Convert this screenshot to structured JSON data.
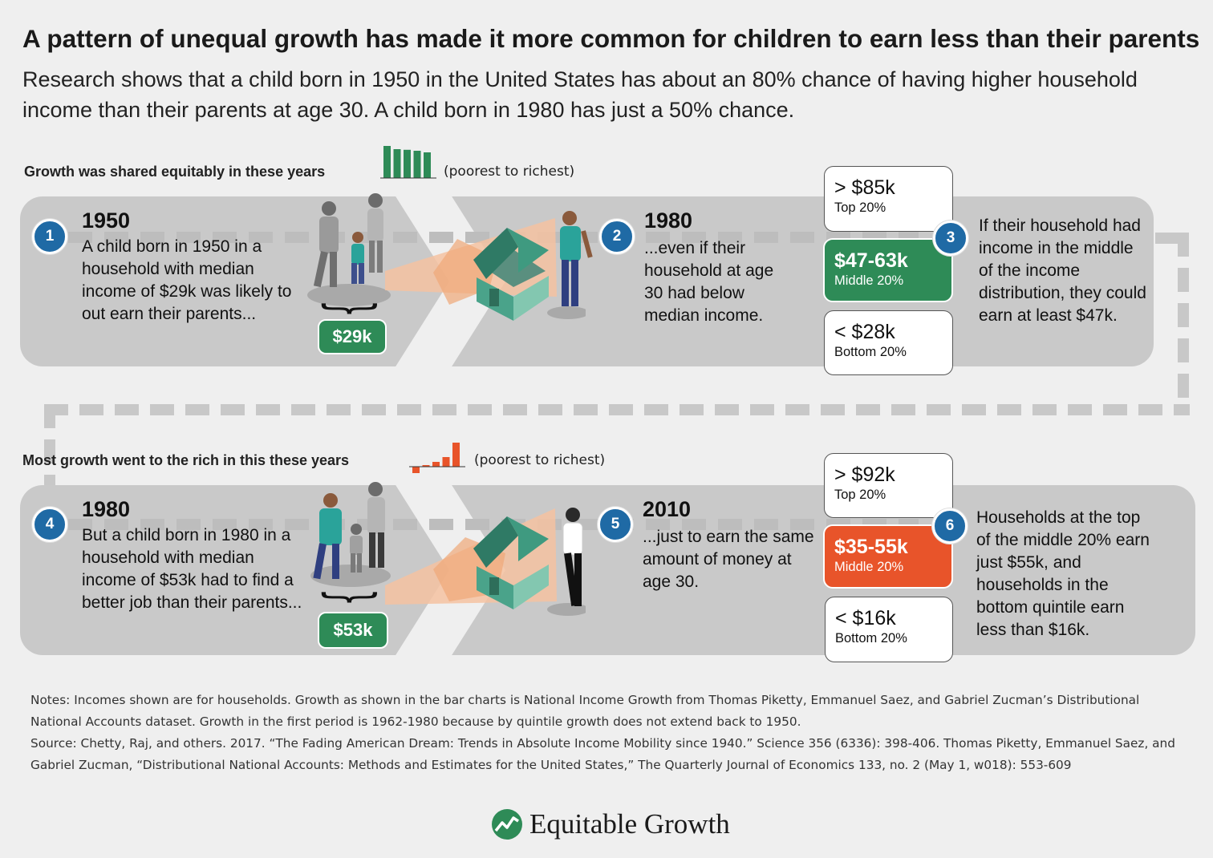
{
  "title": "A pattern of unequal growth has made it more common for children to earn less than their parents",
  "subtitle": "Research shows that a child born in 1950 in the United States has about an 80% chance of having higher household income than their parents at age 30. A child born in 1980 has just a 50% chance.",
  "period1": {
    "label": "Growth was shared equitably in these years",
    "note": "(poorest to richest)",
    "bars": [
      100,
      90,
      88,
      85,
      80
    ],
    "color": "#2e8b57",
    "steps": [
      {
        "num": "1",
        "year": "1950",
        "text": "A child born in 1950 in a household with median income of $29k was likely to out earn their parents...",
        "income": "$29k"
      },
      {
        "num": "2",
        "year": "1980",
        "text": "...even if their household at age 30 had below median income."
      },
      {
        "num": "3",
        "text": "If their household had income in the middle of the income distribution, they could earn at least $47k."
      }
    ],
    "brackets": [
      {
        "amount": "> $85k",
        "label": "Top 20%"
      },
      {
        "amount": "$47-63k",
        "label": "Middle 20%"
      },
      {
        "amount": "< $28k",
        "label": "Bottom 20%"
      }
    ]
  },
  "period2": {
    "label": "Most growth went to the rich in this these years",
    "note": "(poorest to richest)",
    "bars": [
      -8,
      2,
      6,
      12,
      30
    ],
    "color": "#e8542a",
    "steps": [
      {
        "num": "4",
        "year": "1980",
        "text": "But a child born in 1980 in a household with median income of $53k had to find a better job than their parents...",
        "income": "$53k"
      },
      {
        "num": "5",
        "year": "2010",
        "text": "...just to earn the same amount of money at age 30."
      },
      {
        "num": "6",
        "text": "Households at the top of the middle 20% earn just $55k, and households in the bottom quintile earn less than $16k."
      }
    ],
    "brackets": [
      {
        "amount": "> $92k",
        "label": "Top 20%"
      },
      {
        "amount": "$35-55k",
        "label": "Middle 20%"
      },
      {
        "amount": "< $16k",
        "label": "Bottom 20%"
      }
    ]
  },
  "notes": {
    "line1": "Notes: Incomes shown are for households. Growth as shown in the bar charts is National Income Growth from Thomas Piketty, Emmanuel Saez, and Gabriel Zucman’s Distributional National Accounts dataset. Growth in the first period is 1962-1980 because by quintile growth does not extend back to 1950.",
    "line2": "Source: Chetty, Raj, and others. 2017. “The Fading American Dream: Trends in Absolute Income Mobility since 1940.” Science 356 (6336): 398-406. Thomas Piketty, Emmanuel Saez, and Gabriel Zucman, “Distributional National Accounts: Methods and Estimates for the United States,” The Quarterly Journal of Economics 133, no. 2 (May 1, w018): 553-609"
  },
  "brand": "Equitable Growth",
  "colors": {
    "green": "#2e8b57",
    "orange": "#e8542a",
    "step_blue": "#1f6aa5",
    "band_gray": "#c9c9c9"
  }
}
